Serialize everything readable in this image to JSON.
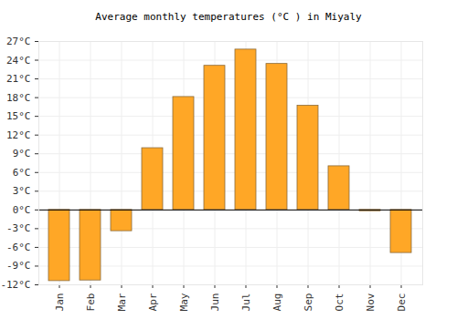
{
  "chart_data": {
    "type": "bar",
    "title": "Average monthly temperatures (°C ) in Miyaly",
    "categories": [
      "Jan",
      "Feb",
      "Mar",
      "Apr",
      "May",
      "Jun",
      "Jul",
      "Aug",
      "Sep",
      "Oct",
      "Nov",
      "Dec"
    ],
    "values": [
      -11.4,
      -11.3,
      -3.4,
      9.9,
      18.1,
      23.1,
      25.7,
      23.4,
      16.7,
      7.0,
      -0.2,
      -6.9
    ],
    "color": "#ffa726",
    "ylim": [
      -12,
      27
    ],
    "yticks": [
      {
        "value": -12,
        "label": "-12°C"
      },
      {
        "value": -9,
        "label": "-9°C"
      },
      {
        "value": -6,
        "label": "-6°C"
      },
      {
        "value": -3,
        "label": "-3°C"
      },
      {
        "value": 0,
        "label": "0°C"
      },
      {
        "value": 3,
        "label": "3°C"
      },
      {
        "value": 6,
        "label": "6°C"
      },
      {
        "value": 9,
        "label": "9°C"
      },
      {
        "value": 12,
        "label": "12°C"
      },
      {
        "value": 15,
        "label": "15°C"
      },
      {
        "value": 18,
        "label": "18°C"
      },
      {
        "value": 21,
        "label": "21°C"
      },
      {
        "value": 24,
        "label": "24°C"
      },
      {
        "value": 27,
        "label": "27°C"
      }
    ],
    "grid": true
  }
}
